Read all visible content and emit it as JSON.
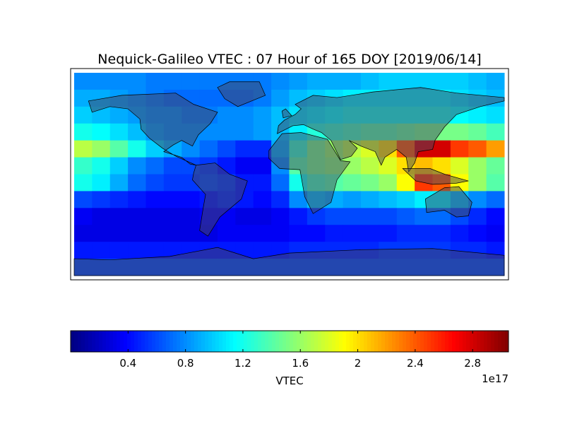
{
  "chart_data": {
    "type": "heatmap",
    "title": "Nequick-Galileo VTEC : 07 Hour of 165 DOY [2019/06/14]",
    "colormap": "jet",
    "colorbar": {
      "label": "VTEC",
      "offset_label": "1e17",
      "lim": [
        0,
        3.05
      ],
      "ticks": [
        0.4,
        0.8,
        1.2,
        1.6,
        2.0,
        2.4,
        2.8
      ]
    },
    "values": [
      [
        0.8,
        0.8,
        0.8,
        0.8,
        0.75,
        0.75,
        0.75,
        0.75,
        0.75,
        0.75,
        0.75,
        0.8,
        0.85,
        0.9,
        0.9,
        0.9,
        0.95,
        1.0,
        1.0,
        1.0,
        1.0,
        1.0,
        0.95,
        0.9
      ],
      [
        0.9,
        0.9,
        0.85,
        0.8,
        0.75,
        0.7,
        0.7,
        0.7,
        0.7,
        0.7,
        0.75,
        0.85,
        0.95,
        1.0,
        1.05,
        1.1,
        1.1,
        1.1,
        1.1,
        1.1,
        1.1,
        1.05,
        1.0,
        0.95
      ],
      [
        1.0,
        0.95,
        0.9,
        0.85,
        0.8,
        0.8,
        0.75,
        0.75,
        0.8,
        0.8,
        0.85,
        0.95,
        1.05,
        1.1,
        1.15,
        1.2,
        1.2,
        1.2,
        1.2,
        1.2,
        1.2,
        1.15,
        1.1,
        1.05
      ],
      [
        1.2,
        1.15,
        1.05,
        0.95,
        0.85,
        0.8,
        0.8,
        0.8,
        0.8,
        0.8,
        0.85,
        0.95,
        1.1,
        1.25,
        1.3,
        1.35,
        1.4,
        1.4,
        1.45,
        1.5,
        1.5,
        1.5,
        1.45,
        1.35
      ],
      [
        1.7,
        1.6,
        1.4,
        1.2,
        1.0,
        0.9,
        0.8,
        0.7,
        0.6,
        0.5,
        0.5,
        0.9,
        1.3,
        1.5,
        1.6,
        1.7,
        1.8,
        2.0,
        2.4,
        2.8,
        2.8,
        2.5,
        2.4,
        2.2
      ],
      [
        1.3,
        1.2,
        1.0,
        0.8,
        0.7,
        0.6,
        0.6,
        0.55,
        0.45,
        0.35,
        0.35,
        0.8,
        1.4,
        1.5,
        1.55,
        1.6,
        1.7,
        1.8,
        2.0,
        2.1,
        2.0,
        1.8,
        1.6,
        1.45
      ],
      [
        1.2,
        1.1,
        0.9,
        0.7,
        0.6,
        0.55,
        0.55,
        0.6,
        0.55,
        0.45,
        0.45,
        0.7,
        1.2,
        1.35,
        1.4,
        1.45,
        1.5,
        1.6,
        1.9,
        2.5,
        2.4,
        1.9,
        1.6,
        1.4
      ],
      [
        0.6,
        0.55,
        0.5,
        0.45,
        0.4,
        0.4,
        0.4,
        0.45,
        0.5,
        0.45,
        0.4,
        0.5,
        0.8,
        0.95,
        0.9,
        0.85,
        0.9,
        0.95,
        1.0,
        1.1,
        1.1,
        0.95,
        0.8,
        0.7
      ],
      [
        0.35,
        0.3,
        0.3,
        0.3,
        0.3,
        0.3,
        0.3,
        0.35,
        0.35,
        0.3,
        0.3,
        0.35,
        0.45,
        0.55,
        0.6,
        0.6,
        0.6,
        0.6,
        0.65,
        0.7,
        0.7,
        0.6,
        0.5,
        0.4
      ],
      [
        0.3,
        0.3,
        0.3,
        0.3,
        0.3,
        0.3,
        0.3,
        0.3,
        0.35,
        0.35,
        0.35,
        0.35,
        0.4,
        0.4,
        0.45,
        0.45,
        0.45,
        0.45,
        0.5,
        0.5,
        0.5,
        0.45,
        0.4,
        0.35
      ],
      [
        0.45,
        0.45,
        0.45,
        0.45,
        0.45,
        0.45,
        0.45,
        0.45,
        0.45,
        0.45,
        0.45,
        0.45,
        0.5,
        0.5,
        0.5,
        0.5,
        0.5,
        0.55,
        0.55,
        0.55,
        0.55,
        0.5,
        0.5,
        0.45
      ],
      [
        0.6,
        0.6,
        0.6,
        0.6,
        0.6,
        0.6,
        0.6,
        0.6,
        0.6,
        0.6,
        0.6,
        0.6,
        0.6,
        0.6,
        0.6,
        0.6,
        0.6,
        0.6,
        0.6,
        0.6,
        0.6,
        0.6,
        0.6,
        0.6
      ]
    ]
  }
}
